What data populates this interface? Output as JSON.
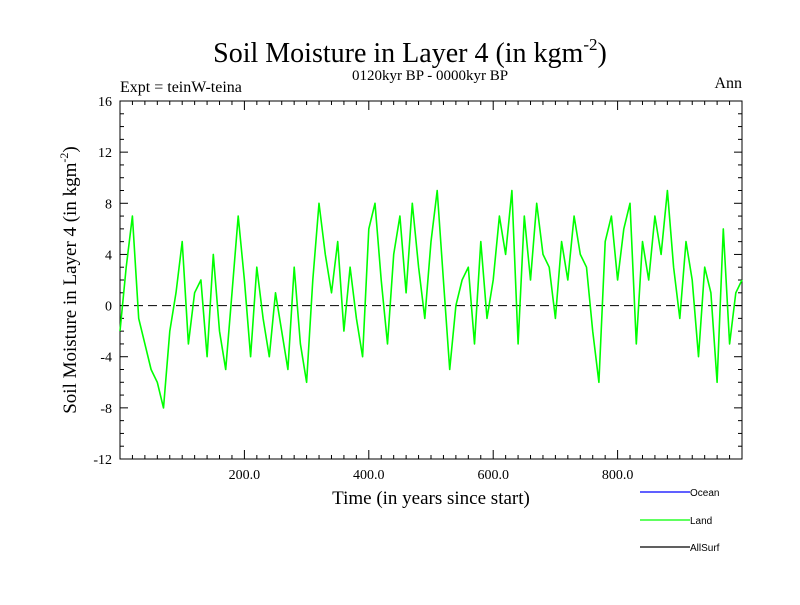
{
  "chart_data": {
    "type": "line",
    "title": "Soil Moisture in Layer 4 (in kgm",
    "title_sup": "-2",
    "title_close": ")",
    "subtitle": "0120kyr BP - 0000kyr BP",
    "left_label": "Expt = teinW-teina",
    "right_label": "Ann",
    "xlabel": "Time (in years since start)",
    "ylabel": "Soil Moisture in Layer 4 (in kgm",
    "ylabel_sup": "-2",
    "ylabel_close": ")",
    "xlim": [
      0,
      1000
    ],
    "ylim": [
      -12,
      16
    ],
    "xticks": [
      200,
      400,
      600,
      800
    ],
    "xtick_labels": [
      "200.0",
      "400.0",
      "600.0",
      "800.0"
    ],
    "yticks": [
      -12,
      -8,
      -4,
      0,
      4,
      8,
      12,
      16
    ],
    "ytick_labels": [
      "-12",
      "-8",
      "-4",
      "0",
      "4",
      "8",
      "12",
      "16"
    ],
    "zero_line": 0,
    "legend": [
      {
        "name": "Ocean",
        "color": "#0000ff"
      },
      {
        "name": "Land",
        "color": "#00ff00"
      },
      {
        "name": "AllSurf",
        "color": "#000000"
      }
    ],
    "series": [
      {
        "name": "Land",
        "color": "#00ff00",
        "x": [
          0,
          10,
          20,
          30,
          40,
          50,
          60,
          70,
          80,
          90,
          100,
          110,
          120,
          130,
          140,
          150,
          160,
          170,
          180,
          190,
          200,
          210,
          220,
          230,
          240,
          250,
          260,
          270,
          280,
          290,
          300,
          310,
          320,
          330,
          340,
          350,
          360,
          370,
          380,
          390,
          400,
          410,
          420,
          430,
          440,
          450,
          460,
          470,
          480,
          490,
          500,
          510,
          520,
          530,
          540,
          550,
          560,
          570,
          580,
          590,
          600,
          610,
          620,
          630,
          640,
          650,
          660,
          670,
          680,
          690,
          700,
          710,
          720,
          730,
          740,
          750,
          760,
          770,
          780,
          790,
          800,
          810,
          820,
          830,
          840,
          850,
          860,
          870,
          880,
          890,
          900,
          910,
          920,
          930,
          940,
          950,
          960,
          970,
          980,
          990,
          1000
        ],
        "values": [
          -2,
          3,
          7,
          -1,
          -3,
          -5,
          -6,
          -8,
          -2,
          1,
          5,
          -3,
          1,
          2,
          -4,
          4,
          -2,
          -5,
          1,
          7,
          2,
          -4,
          3,
          -1,
          -4,
          1,
          -2,
          -5,
          3,
          -3,
          -6,
          2,
          8,
          4,
          1,
          5,
          -2,
          3,
          -1,
          -4,
          6,
          8,
          2,
          -3,
          4,
          7,
          1,
          8,
          3,
          -1,
          5,
          9,
          2,
          -5,
          0,
          2,
          3,
          -3,
          5,
          -1,
          2,
          7,
          4,
          9,
          -3,
          7,
          2,
          8,
          4,
          3,
          -1,
          5,
          2,
          7,
          4,
          3,
          -2,
          -6,
          5,
          7,
          2,
          6,
          8,
          -3,
          5,
          2,
          7,
          4,
          9,
          3,
          -1,
          5,
          2,
          -4,
          3,
          1,
          -6,
          6,
          -3,
          1,
          2
        ]
      }
    ]
  }
}
